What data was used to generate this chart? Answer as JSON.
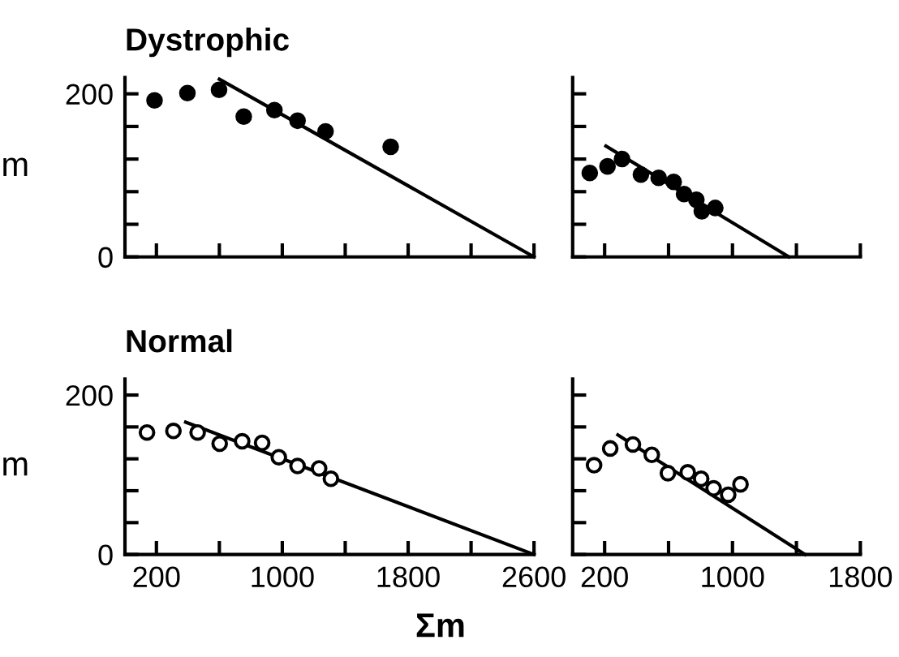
{
  "chart_data": [
    {
      "type": "scatter",
      "title": "Dystrophic",
      "ylabel": "m",
      "xlim": [
        0,
        2600
      ],
      "ylim": [
        0,
        220
      ],
      "tick_labels": "y",
      "grid": false,
      "legend": false,
      "xticks": [
        200,
        {
          "value": 600,
          "label": null
        },
        1000,
        {
          "value": 1400,
          "label": null
        },
        1800,
        {
          "value": 2200,
          "label": null
        },
        2600
      ],
      "yticks": [
        0,
        {
          "value": 40,
          "label": null
        },
        {
          "value": 80,
          "label": null
        },
        {
          "value": 120,
          "label": null
        },
        {
          "value": 160,
          "label": null
        },
        200
      ],
      "series": [
        {
          "marker": "circle",
          "color": "#000000",
          "x": [
            188,
            397,
            598,
            755,
            950,
            1097,
            1275,
            1689
          ],
          "values": [
            192,
            201,
            205,
            172,
            180,
            167,
            154,
            135
          ]
        },
        {
          "type": "line",
          "marker": "none",
          "color": "#000000",
          "x": [
            600,
            2600
          ],
          "values": [
            218,
            0
          ]
        }
      ]
    },
    {
      "type": "scatter",
      "xlim": [
        0,
        1800
      ],
      "ylim": [
        0,
        220
      ],
      "tick_labels": false,
      "grid": false,
      "legend": false,
      "xticks": [
        200,
        {
          "value": 600,
          "label": null
        },
        1000,
        {
          "value": 1400,
          "label": null
        },
        1800
      ],
      "yticks": [
        0,
        {
          "value": 40,
          "label": null
        },
        {
          "value": 80,
          "label": null
        },
        {
          "value": 120,
          "label": null
        },
        {
          "value": 160,
          "label": null
        },
        200
      ],
      "series": [
        {
          "marker": "circle",
          "color": "#000000",
          "x": [
            107,
            218,
            309,
            427,
            538,
            632,
            697,
            774,
            808,
            892
          ],
          "values": [
            103,
            111,
            120,
            101,
            97,
            92,
            77,
            70,
            56,
            60
          ]
        },
        {
          "type": "line",
          "marker": "none",
          "color": "#000000",
          "x": [
            208,
            1353
          ],
          "values": [
            136,
            0
          ]
        }
      ]
    },
    {
      "type": "scatter",
      "title": "Normal",
      "ylabel": "m",
      "xlabel": "Σm",
      "xlim": [
        0,
        2600
      ],
      "ylim": [
        0,
        220
      ],
      "grid": false,
      "legend": false,
      "xticks": [
        200,
        {
          "value": 600,
          "label": null
        },
        1000,
        {
          "value": 1400,
          "label": null
        },
        1800,
        {
          "value": 2200,
          "label": null
        },
        2600
      ],
      "yticks": [
        0,
        {
          "value": 40,
          "label": null
        },
        {
          "value": 80,
          "label": null
        },
        {
          "value": 120,
          "label": null
        },
        {
          "value": 160,
          "label": null
        },
        200
      ],
      "series": [
        {
          "marker": "circle",
          "color": "#ffffff",
          "x": [
            140,
            308,
            462,
            602,
            745,
            872,
            978,
            1097,
            1234,
            1309
          ],
          "values": [
            153,
            155,
            153,
            139,
            142,
            140,
            122,
            111,
            108,
            95
          ]
        },
        {
          "type": "line",
          "marker": "none",
          "color": "#000000",
          "x": [
            386,
            2600
          ],
          "values": [
            166,
            0
          ]
        }
      ]
    },
    {
      "type": "scatter",
      "xlim": [
        0,
        1800
      ],
      "ylim": [
        0,
        220
      ],
      "tick_labels": "x",
      "grid": false,
      "legend": false,
      "xticks": [
        200,
        {
          "value": 600,
          "label": null
        },
        1000,
        {
          "value": 1400,
          "label": null
        },
        1800
      ],
      "yticks": [
        0,
        {
          "value": 40,
          "label": null
        },
        {
          "value": 80,
          "label": null
        },
        {
          "value": 120,
          "label": null
        },
        {
          "value": 160,
          "label": null
        },
        200
      ],
      "series": [
        {
          "marker": "circle",
          "color": "#ffffff",
          "x": [
            134,
            235,
            377,
            495,
            596,
            720,
            804,
            882,
            973,
            1050
          ],
          "values": [
            112,
            133,
            138,
            125,
            102,
            103,
            95,
            83,
            75,
            88
          ]
        },
        {
          "type": "line",
          "marker": "none",
          "color": "#000000",
          "x": [
            283,
            1454
          ],
          "values": [
            150,
            0
          ]
        }
      ]
    }
  ]
}
